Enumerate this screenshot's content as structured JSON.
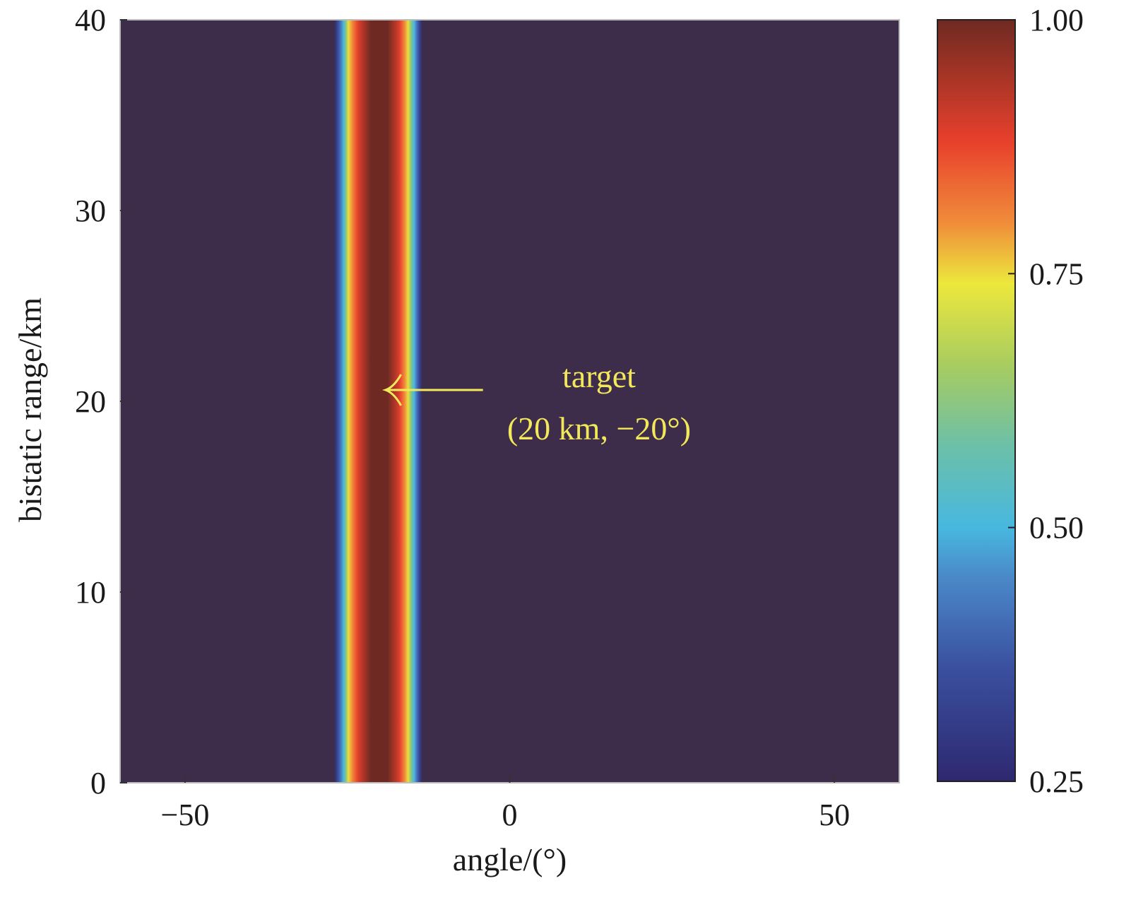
{
  "chart_data": {
    "type": "heatmap",
    "title": "",
    "xlabel": "angle/(°)",
    "ylabel": "bistatic range/km",
    "xlim": [
      -60,
      60
    ],
    "ylim": [
      0,
      40
    ],
    "x_ticks": [
      -50,
      0,
      50
    ],
    "x_tick_labels": [
      "−50",
      "0",
      "50"
    ],
    "y_ticks": [
      0,
      10,
      20,
      30,
      40
    ],
    "y_tick_labels": [
      "0",
      "10",
      "20",
      "30",
      "40"
    ],
    "grid": false,
    "colorbar": {
      "position": "right",
      "range": [
        0.25,
        1.0
      ],
      "ticks": [
        0.25,
        0.5,
        0.75,
        1.0
      ],
      "tick_labels": [
        "0.25",
        "0.50",
        "0.75",
        "1.00"
      ],
      "colormap": [
        {
          "value": 0.25,
          "color": "#2e2870"
        },
        {
          "value": 0.36,
          "color": "#3a4f9e"
        },
        {
          "value": 0.45,
          "color": "#4a88c8"
        },
        {
          "value": 0.5,
          "color": "#48b8e0"
        },
        {
          "value": 0.58,
          "color": "#6cc0a8"
        },
        {
          "value": 0.66,
          "color": "#a8cc60"
        },
        {
          "value": 0.74,
          "color": "#ece83c"
        },
        {
          "value": 0.8,
          "color": "#f08c3a"
        },
        {
          "value": 0.88,
          "color": "#e8402c"
        },
        {
          "value": 1.0,
          "color": "#6e2a22"
        }
      ]
    },
    "background_color": "#3d2d4b",
    "profile_along_angle": [
      {
        "angle": -27.0,
        "value": 0.25
      },
      {
        "angle": -25.6,
        "value": 0.5
      },
      {
        "angle": -24.8,
        "value": 0.75
      },
      {
        "angle": -23.2,
        "value": 0.9
      },
      {
        "angle": -21.4,
        "value": 1.0
      },
      {
        "angle": -18.8,
        "value": 1.0
      },
      {
        "angle": -17.1,
        "value": 0.9
      },
      {
        "angle": -15.7,
        "value": 0.75
      },
      {
        "angle": -14.7,
        "value": 0.5
      },
      {
        "angle": -13.5,
        "value": 0.25
      }
    ],
    "annotations": [
      {
        "line1": "target",
        "line2": "(20 km, −20°)",
        "point": {
          "angle": -20,
          "range": 20
        },
        "color": "#f2e85a"
      }
    ]
  }
}
